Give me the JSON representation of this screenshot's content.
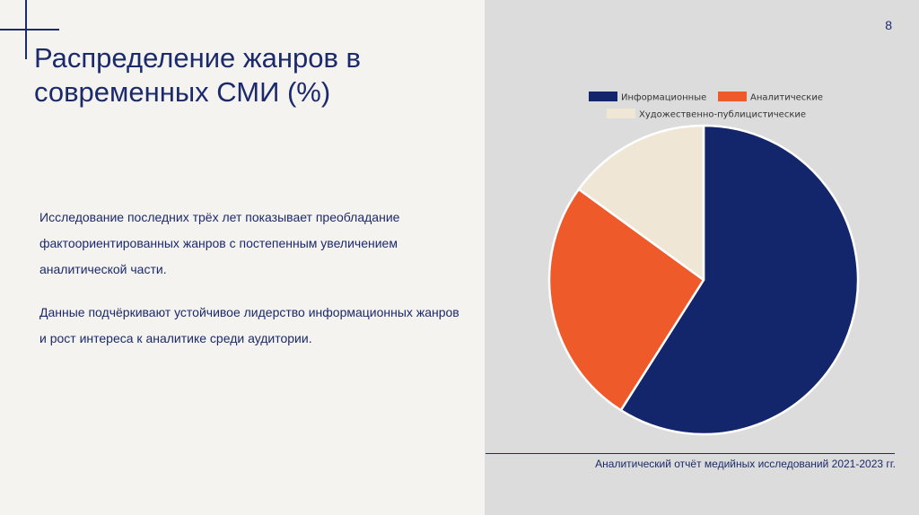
{
  "slide": {
    "page_number": "8",
    "title": "Распределение жанров в современных СМИ (%)",
    "paragraphs": [
      "Исследование последних трёх лет показывает преобладание фактоориентированных жанров с постепенным увеличением аналитической части.",
      "Данные подчёркивают устойчивое лидерство информационных жанров и рост интереса к аналитике среди аудитории."
    ],
    "source": "Аналитический отчёт медийных исследований 2021-2023 гг."
  },
  "colors": {
    "accent": "#1b2a6b",
    "informational": "#13266b",
    "analytical": "#ef5a2a",
    "journalistic": "#efe6d6"
  },
  "chart_data": {
    "type": "pie",
    "title": "",
    "legend_position": "top",
    "start_angle_deg": 0,
    "direction": "clockwise",
    "slices": [
      {
        "label": "Информационные",
        "value": 59,
        "color": "#13266b"
      },
      {
        "label": "Аналитические",
        "value": 26,
        "color": "#ef5a2a"
      },
      {
        "label": "Художественно-публицистические",
        "value": 15,
        "color": "#efe6d6"
      }
    ]
  }
}
